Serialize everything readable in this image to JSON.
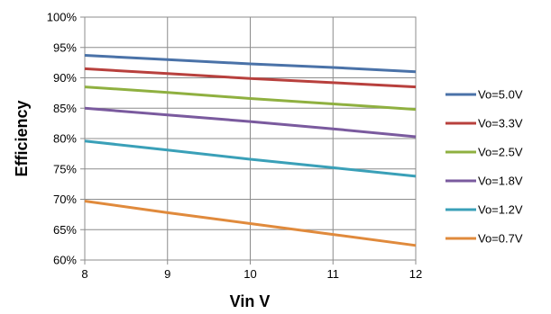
{
  "chart_data": {
    "type": "line",
    "title": "",
    "xlabel": "Vin V",
    "ylabel": "Efficiency",
    "x": [
      8,
      9,
      10,
      11,
      12
    ],
    "x_ticks": [
      "8",
      "9",
      "10",
      "11",
      "12"
    ],
    "xlim": [
      8,
      12
    ],
    "ylim": [
      60,
      100
    ],
    "y_ticks": [
      "60%",
      "65%",
      "70%",
      "75%",
      "80%",
      "85%",
      "90%",
      "95%",
      "100%"
    ],
    "grid": true,
    "legend_position": "right",
    "series": [
      {
        "name": "Vo=5.0V",
        "color": "#4a72a8",
        "values": [
          93.7,
          93.0,
          92.3,
          91.7,
          91.0
        ]
      },
      {
        "name": "Vo=3.3V",
        "color": "#b8403d",
        "values": [
          91.5,
          90.7,
          89.9,
          89.2,
          88.5
        ]
      },
      {
        "name": "Vo=2.5V",
        "color": "#8fb040",
        "values": [
          88.5,
          87.6,
          86.6,
          85.7,
          84.8
        ]
      },
      {
        "name": "Vo=1.8V",
        "color": "#7a5a9e",
        "values": [
          85.0,
          83.9,
          82.8,
          81.6,
          80.3
        ]
      },
      {
        "name": "Vo=1.2V",
        "color": "#3aa0b8",
        "values": [
          79.6,
          78.1,
          76.6,
          75.2,
          73.8
        ]
      },
      {
        "name": "Vo=0.7V",
        "color": "#e08a3c",
        "values": [
          69.7,
          67.8,
          66.0,
          64.2,
          62.4
        ]
      }
    ]
  }
}
